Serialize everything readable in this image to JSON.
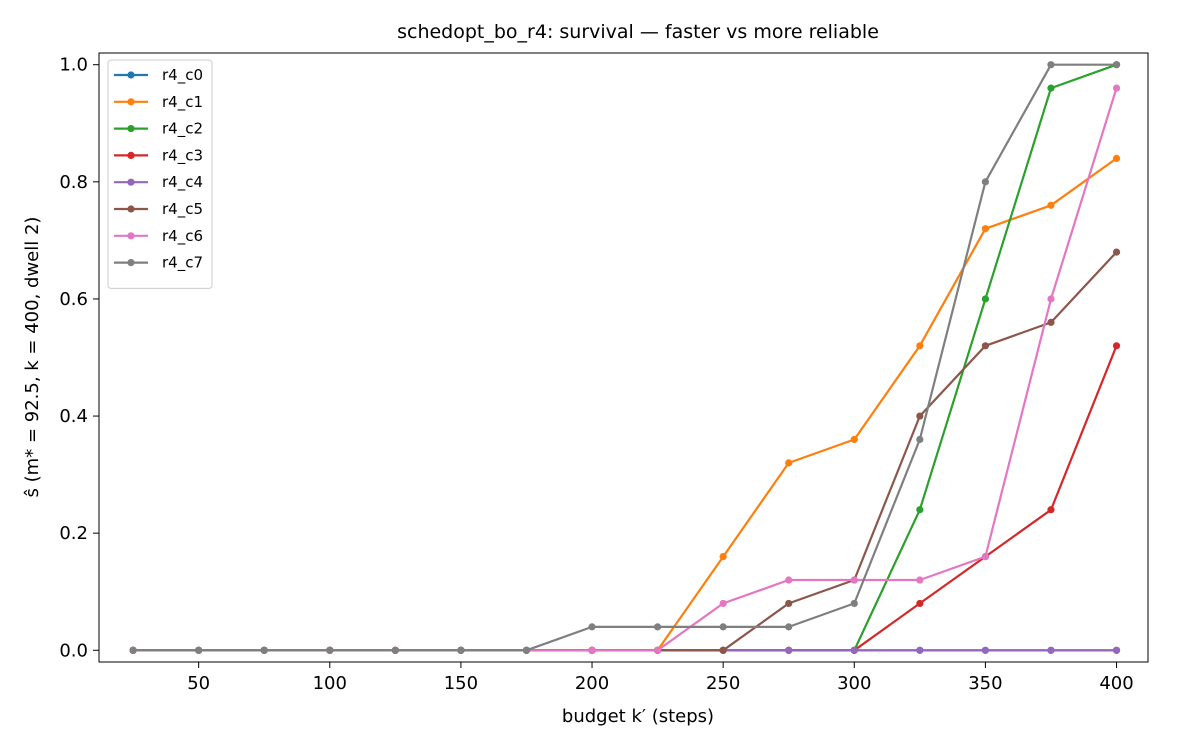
{
  "chart_data": {
    "type": "line",
    "title": "schedopt_bo_r4: survival — faster vs more reliable",
    "xlabel": "budget k′ (steps)",
    "ylabel": "ŝ (m* = 92.5, k = 400, dwell 2)",
    "xlim": [
      12,
      412
    ],
    "ylim": [
      -0.02,
      1.02
    ],
    "xticks": [
      50,
      100,
      150,
      200,
      250,
      300,
      350,
      400
    ],
    "xtick_labels": [
      "50",
      "100",
      "150",
      "200",
      "250",
      "300",
      "350",
      "400"
    ],
    "yticks": [
      0.0,
      0.2,
      0.4,
      0.6,
      0.8,
      1.0
    ],
    "ytick_labels": [
      "0.0",
      "0.2",
      "0.4",
      "0.6",
      "0.8",
      "1.0"
    ],
    "grid": false,
    "legend_position": "top-left",
    "x": [
      25,
      50,
      75,
      100,
      125,
      150,
      175,
      200,
      225,
      250,
      275,
      300,
      325,
      350,
      375,
      400
    ],
    "series": [
      {
        "name": "r4_c0",
        "color": "#1f77b4",
        "values": [
          0,
          0,
          0,
          0,
          0,
          0,
          0,
          0,
          0,
          0,
          0,
          0,
          0,
          0,
          0,
          0
        ]
      },
      {
        "name": "r4_c1",
        "color": "#ff7f0e",
        "values": [
          0,
          0,
          0,
          0,
          0,
          0,
          0,
          0,
          0,
          0.16,
          0.32,
          0.36,
          0.52,
          0.72,
          0.76,
          0.84
        ]
      },
      {
        "name": "r4_c2",
        "color": "#2ca02c",
        "values": [
          0,
          0,
          0,
          0,
          0,
          0,
          0,
          0,
          0,
          0,
          0,
          0,
          0.24,
          0.6,
          0.96,
          1.0
        ]
      },
      {
        "name": "r4_c3",
        "color": "#d62728",
        "values": [
          0,
          0,
          0,
          0,
          0,
          0,
          0,
          0,
          0,
          0,
          0,
          0,
          0.08,
          0.16,
          0.24,
          0.52
        ]
      },
      {
        "name": "r4_c4",
        "color": "#9467bd",
        "values": [
          0,
          0,
          0,
          0,
          0,
          0,
          0,
          0,
          0,
          0,
          0,
          0,
          0,
          0,
          0,
          0
        ]
      },
      {
        "name": "r4_c5",
        "color": "#8c564b",
        "values": [
          0,
          0,
          0,
          0,
          0,
          0,
          0,
          0,
          0,
          0,
          0.08,
          0.12,
          0.4,
          0.52,
          0.56,
          0.68
        ]
      },
      {
        "name": "r4_c6",
        "color": "#e377c2",
        "values": [
          0,
          0,
          0,
          0,
          0,
          0,
          0,
          0,
          0,
          0.08,
          0.12,
          0.12,
          0.12,
          0.16,
          0.6,
          0.96
        ]
      },
      {
        "name": "r4_c7",
        "color": "#7f7f7f",
        "values": [
          0,
          0,
          0,
          0,
          0,
          0,
          0,
          0.04,
          0.04,
          0.04,
          0.04,
          0.08,
          0.36,
          0.8,
          1.0,
          1.0
        ]
      }
    ]
  }
}
